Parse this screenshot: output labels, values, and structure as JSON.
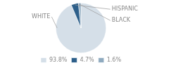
{
  "chart_data": {
    "type": "pie",
    "categories": [
      "WHITE",
      "HISPANIC",
      "BLACK"
    ],
    "values": [
      93.8,
      4.7,
      1.6
    ],
    "value_labels": [
      "93.8%",
      "4.7%",
      "1.6%"
    ],
    "colors": [
      "#d5dfe8",
      "#2d5f8a",
      "#8faabf"
    ],
    "legend": "bottom"
  }
}
